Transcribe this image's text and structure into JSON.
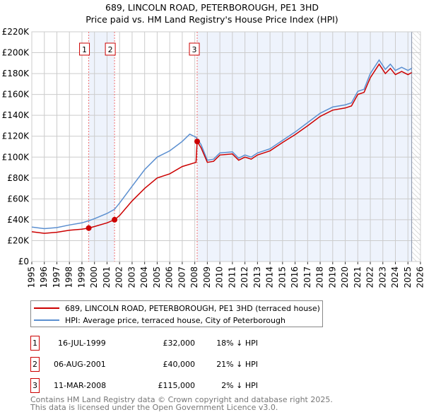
{
  "chart_data": {
    "type": "line",
    "title": "689, LINCOLN ROAD, PETERBOROUGH, PE1 3HD",
    "subtitle": "Price paid vs. HM Land Registry's House Price Index (HPI)",
    "xlim": [
      1995,
      2026
    ],
    "ylim": [
      0,
      220000
    ],
    "grid": true,
    "x_ticks": [
      "1995",
      "1996",
      "1997",
      "1998",
      "1999",
      "2000",
      "2001",
      "2002",
      "2003",
      "2004",
      "2005",
      "2006",
      "2007",
      "2008",
      "2009",
      "2010",
      "2011",
      "2012",
      "2013",
      "2014",
      "2015",
      "2016",
      "2017",
      "2018",
      "2019",
      "2020",
      "2021",
      "2022",
      "2023",
      "2024",
      "2025",
      "2026"
    ],
    "y_ticks": [
      {
        "v": 0,
        "l": "£0"
      },
      {
        "v": 20000,
        "l": "£20K"
      },
      {
        "v": 40000,
        "l": "£40K"
      },
      {
        "v": 60000,
        "l": "£60K"
      },
      {
        "v": 80000,
        "l": "£80K"
      },
      {
        "v": 100000,
        "l": "£100K"
      },
      {
        "v": 120000,
        "l": "£120K"
      },
      {
        "v": 140000,
        "l": "£140K"
      },
      {
        "v": 160000,
        "l": "£160K"
      },
      {
        "v": 180000,
        "l": "£180K"
      },
      {
        "v": 200000,
        "l": "£200K"
      },
      {
        "v": 220000,
        "l": "£220K"
      }
    ],
    "series": [
      {
        "name": "689, LINCOLN ROAD, PETERBOROUGH, PE1 3HD (terraced house)",
        "color": "#cc0000",
        "x": [
          1995,
          1996,
          1997,
          1998,
          1999,
          1999.54,
          2000,
          2001,
          2001.6,
          2002,
          2003,
          2004,
          2005,
          2006,
          2007,
          2008.1,
          2008.19,
          2008.5,
          2009,
          2009.5,
          2010,
          2011,
          2011.5,
          2012,
          2012.5,
          2013,
          2014,
          2015,
          2016,
          2017,
          2018,
          2019,
          2020,
          2020.5,
          2021,
          2021.5,
          2022,
          2022.7,
          2023.2,
          2023.6,
          2024,
          2024.5,
          2025,
          2025.3
        ],
        "y": [
          28500,
          27000,
          28000,
          30000,
          31000,
          32000,
          33500,
          37000,
          40000,
          44000,
          58000,
          70000,
          80000,
          84000,
          91000,
          95000,
          115000,
          109000,
          95000,
          96000,
          102000,
          103000,
          97000,
          100000,
          98000,
          102000,
          106000,
          114000,
          121500,
          130000,
          139000,
          145000,
          147000,
          149000,
          160000,
          162000,
          176000,
          189000,
          180000,
          185000,
          179000,
          182000,
          179000,
          181000
        ]
      },
      {
        "name": "HPI: Average price, terraced house, City of Peterborough",
        "color": "#5b8fd0",
        "x": [
          1995,
          1996,
          1997,
          1998,
          1999,
          1999.54,
          2000,
          2001,
          2001.6,
          2002,
          2003,
          2004,
          2005,
          2006,
          2007,
          2007.6,
          2008.1,
          2008.5,
          2009,
          2009.5,
          2010,
          2011,
          2011.5,
          2012,
          2012.5,
          2013,
          2014,
          2015,
          2016,
          2017,
          2018,
          2019,
          2020,
          2020.5,
          2021,
          2021.5,
          2022,
          2022.7,
          2023.2,
          2023.6,
          2024,
          2024.5,
          2025,
          2025.3
        ],
        "y": [
          33000,
          31500,
          32500,
          35000,
          37000,
          39000,
          41000,
          46000,
          50000,
          56000,
          72000,
          88000,
          100000,
          106000,
          115000,
          122000,
          119000,
          112000,
          97000,
          98000,
          104000,
          105000,
          99000,
          102000,
          100000,
          104000,
          108000,
          116000,
          124000,
          133000,
          142000,
          148000,
          150000,
          152000,
          163000,
          165000,
          180000,
          193000,
          184000,
          189000,
          183000,
          186000,
          183000,
          185000
        ]
      }
    ],
    "sales": [
      {
        "label": "1",
        "x": 1999.54,
        "y": 32000,
        "date": "16-JUL-1999",
        "price": "£32,000",
        "hpi": "18% ↓ HPI"
      },
      {
        "label": "2",
        "x": 2001.6,
        "y": 40000,
        "date": "06-AUG-2001",
        "price": "£40,000",
        "hpi": "21% ↓ HPI"
      },
      {
        "label": "3",
        "x": 2008.19,
        "y": 115000,
        "date": "11-MAR-2008",
        "price": "£115,000",
        "hpi": "2% ↓ HPI"
      }
    ],
    "data_end": 2025.3
  },
  "footer": {
    "line1": "Contains HM Land Registry data © Crown copyright and database right 2025.",
    "line2": "This data is licensed under the Open Government Licence v3.0."
  }
}
